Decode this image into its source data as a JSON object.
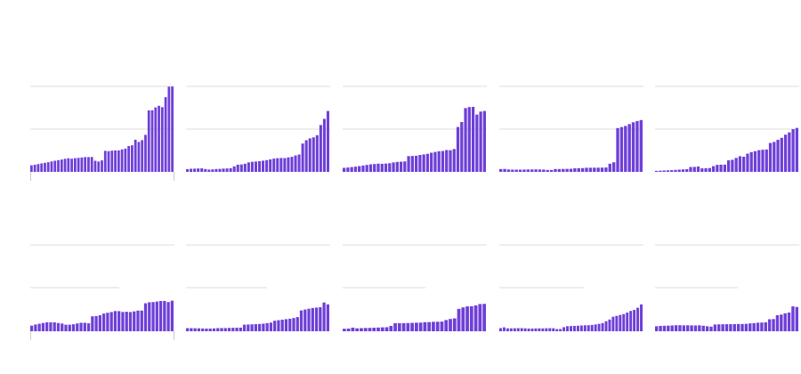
{
  "colors": {
    "bar": "#6e3fd8",
    "bar_outline": "#ffffff",
    "grid": "#dcdcdc",
    "axis_tick": "#cccccc",
    "background": "#ffffff"
  },
  "chart_data": [
    {
      "type": "bar",
      "grid": true,
      "ylim": [
        0,
        100
      ],
      "values": [
        7.7,
        8.3,
        9.1,
        9.9,
        10.6,
        11.3,
        12.2,
        13.0,
        13.7,
        14.4,
        15.3,
        15.9,
        15.4,
        16.0,
        16.4,
        16.8,
        17.3,
        17.3,
        17.4,
        13.0,
        12.1,
        13.4,
        24.6,
        24.2,
        24.8,
        25.1,
        25.1,
        26.2,
        27.2,
        30.2,
        31.1,
        37.6,
        35.0,
        37.1,
        43.3,
        71.9,
        72.1,
        75.4,
        77.3,
        75.7,
        87.4,
        99.6,
        99.8
      ]
    },
    {
      "type": "bar",
      "grid": true,
      "ylim": [
        0,
        100
      ],
      "values": [
        3.2,
        3.6,
        3.8,
        4.0,
        4.1,
        3.3,
        2.7,
        2.9,
        3.3,
        3.5,
        3.8,
        4.0,
        4.3,
        6.4,
        8.4,
        8.7,
        9.5,
        11.1,
        11.8,
        12.1,
        12.5,
        13.1,
        13.7,
        14.6,
        15.5,
        16.0,
        16.2,
        16.1,
        16.9,
        17.6,
        19.2,
        20.3,
        33.1,
        37.0,
        39.2,
        40.4,
        42.9,
        54.8,
        62.0,
        71.2
      ]
    },
    {
      "type": "bar",
      "grid": true,
      "ylim": [
        0,
        100
      ],
      "values": [
        4.7,
        5.1,
        5.6,
        6.1,
        6.7,
        7.4,
        8.1,
        8.8,
        9.2,
        9.6,
        9.4,
        9.7,
        10.1,
        11.0,
        11.6,
        11.9,
        12.2,
        18.4,
        18.6,
        18.9,
        19.8,
        20.4,
        21.1,
        22.4,
        23.3,
        24.1,
        24.4,
        25.5,
        25.3,
        26.7,
        52.5,
        58.3,
        74.6,
        75.8,
        76.0,
        67.0,
        70.5,
        71.2
      ]
    },
    {
      "type": "bar",
      "grid": true,
      "ylim": [
        0,
        100
      ],
      "values": [
        3.3,
        3.4,
        2.8,
        2.6,
        2.6,
        2.6,
        2.7,
        2.8,
        2.8,
        2.9,
        2.8,
        2.7,
        2.2,
        2.2,
        3.3,
        3.3,
        3.4,
        3.5,
        3.6,
        4.2,
        4.3,
        4.4,
        4.8,
        4.8,
        4.9,
        4.9,
        5.0,
        5.1,
        9.5,
        11.2,
        51.2,
        52.4,
        53.7,
        55.9,
        58.0,
        59.5,
        60.6
      ]
    },
    {
      "type": "bar",
      "grid": true,
      "ylim": [
        0,
        100
      ],
      "values": [
        1.2,
        1.4,
        1.6,
        1.8,
        2.0,
        2.3,
        2.6,
        2.9,
        3.2,
        5.7,
        5.8,
        6.3,
        4.1,
        4.3,
        4.5,
        6.7,
        8.2,
        8.4,
        8.4,
        13.5,
        14.1,
        16.3,
        18.3,
        17.7,
        21.3,
        23.1,
        24.2,
        25.4,
        25.9,
        26.1,
        33.8,
        35.0,
        37.5,
        39.8,
        43.5,
        46.2,
        50.0,
        51.4
      ]
    },
    {
      "type": "bar",
      "grid": true,
      "ylim": [
        0,
        100
      ],
      "values": [
        6.5,
        7.8,
        8.7,
        9.6,
        10.3,
        10.3,
        10.3,
        9.5,
        8.9,
        7.6,
        7.6,
        8.1,
        9.0,
        9.8,
        9.8,
        9.2,
        17.3,
        17.6,
        18.5,
        20.5,
        21.4,
        22.2,
        23.4,
        23.3,
        22.3,
        22.6,
        22.2,
        23.0,
        23.9,
        24.0,
        32.4,
        33.6,
        33.8,
        34.4,
        35.0,
        35.1,
        33.8,
        35.4
      ]
    },
    {
      "type": "bar",
      "grid": true,
      "ylim": [
        0,
        100
      ],
      "values": [
        3.6,
        3.6,
        3.5,
        3.4,
        3.2,
        3.1,
        3.1,
        3.3,
        3.6,
        3.7,
        3.7,
        3.9,
        4.0,
        4.1,
        4.2,
        7.6,
        7.8,
        8.0,
        8.2,
        8.4,
        8.8,
        9.4,
        10.0,
        12.2,
        12.8,
        13.4,
        14.0,
        14.5,
        15.3,
        16.4,
        24.1,
        25.2,
        26.1,
        26.9,
        27.4,
        27.8,
        33.3,
        31.1
      ]
    },
    {
      "type": "bar",
      "grid": true,
      "ylim": [
        0,
        100
      ],
      "values": [
        2.9,
        3.1,
        4.2,
        3.4,
        3.6,
        3.8,
        3.9,
        4.1,
        4.3,
        4.5,
        4.7,
        6.2,
        9.3,
        9.3,
        9.4,
        9.5,
        9.7,
        9.9,
        10.0,
        10.5,
        10.6,
        10.9,
        11.0,
        11.2,
        13.0,
        14.2,
        14.9,
        25.9,
        27.6,
        28.8,
        28.9,
        29.9,
        31.5,
        31.7
      ]
    },
    {
      "type": "bar",
      "grid": true,
      "ylim": [
        0,
        100
      ],
      "values": [
        3.6,
        4.5,
        3.4,
        3.4,
        3.5,
        3.6,
        3.6,
        3.4,
        3.1,
        3.1,
        3.3,
        3.4,
        3.3,
        3.5,
        3.6,
        3.5,
        2.5,
        2.6,
        4.7,
        5.9,
        6.0,
        6.2,
        6.4,
        6.7,
        6.9,
        7.0,
        7.3,
        7.9,
        8.6,
        9.5,
        11.6,
        13.6,
        16.8,
        17.8,
        18.9,
        19.9,
        21.6,
        23.5,
        24.7,
        27.2,
        31.1
      ]
    },
    {
      "type": "bar",
      "grid": true,
      "ylim": [
        0,
        100
      ],
      "values": [
        5.8,
        6.2,
        6.4,
        6.5,
        6.7,
        7.0,
        7.0,
        6.8,
        6.9,
        6.8,
        6.7,
        6.9,
        6.4,
        5.8,
        5.3,
        7.8,
        8.0,
        8.1,
        8.2,
        8.2,
        8.3,
        8.4,
        8.4,
        8.6,
        9.1,
        9.4,
        9.9,
        10.1,
        10.3,
        13.9,
        14.1,
        18.6,
        19.3,
        20.8,
        21.7,
        28.8,
        28.1
      ]
    }
  ]
}
